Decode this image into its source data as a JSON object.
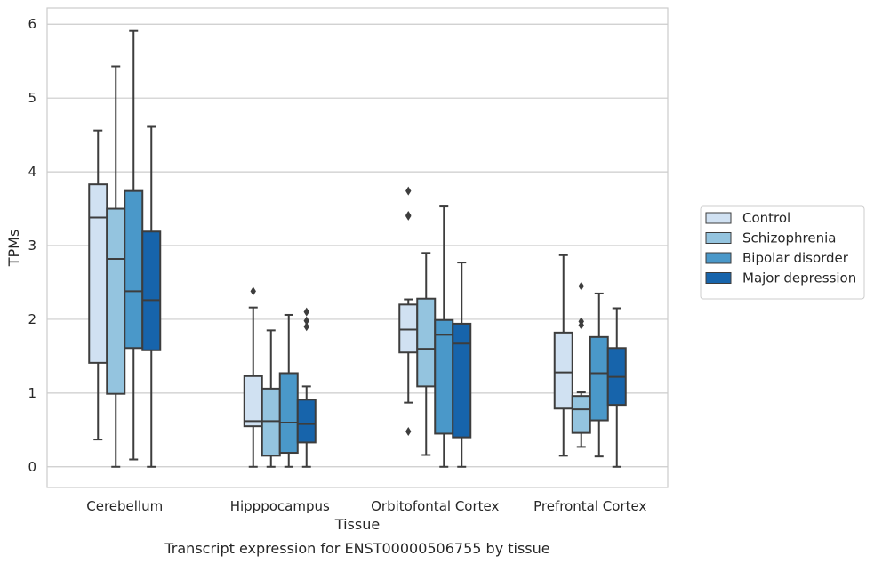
{
  "chart_data": {
    "type": "box",
    "caption": "Transcript expression for ENST00000506755 by tissue",
    "xlabel": "Tissue",
    "ylabel": "TPMs",
    "ylim": [
      -0.28,
      6.22
    ],
    "yticks": [
      0,
      1,
      2,
      3,
      4,
      5,
      6
    ],
    "grid": true,
    "legend_position": "right",
    "categories": [
      "Cerebellum",
      "Hipppocampus",
      "Orbitofontal Cortex",
      "Prefrontal Cortex"
    ],
    "series": [
      {
        "name": "Control",
        "color": "#d0e1f2",
        "boxes": [
          {
            "whislo": 0.37,
            "q1": 1.41,
            "med": 3.38,
            "q3": 3.83,
            "whishi": 4.56,
            "fliers": []
          },
          {
            "whislo": 0.0,
            "q1": 0.55,
            "med": 0.62,
            "q3": 1.23,
            "whishi": 2.16,
            "fliers": [
              2.38
            ]
          },
          {
            "whislo": 0.87,
            "q1": 1.55,
            "med": 1.86,
            "q3": 2.2,
            "whishi": 2.27,
            "fliers": [
              3.74,
              3.41,
              3.4,
              0.48
            ]
          },
          {
            "whislo": 0.15,
            "q1": 0.79,
            "med": 1.28,
            "q3": 1.82,
            "whishi": 2.87,
            "fliers": []
          }
        ]
      },
      {
        "name": "Schizophrenia",
        "color": "#94c4df",
        "boxes": [
          {
            "whislo": 0.0,
            "q1": 0.99,
            "med": 2.82,
            "q3": 3.5,
            "whishi": 5.43,
            "fliers": []
          },
          {
            "whislo": 0.0,
            "q1": 0.15,
            "med": 0.62,
            "q3": 1.06,
            "whishi": 1.85,
            "fliers": []
          },
          {
            "whislo": 0.16,
            "q1": 1.09,
            "med": 1.6,
            "q3": 2.28,
            "whishi": 2.9,
            "fliers": []
          },
          {
            "whislo": 0.27,
            "q1": 0.46,
            "med": 0.78,
            "q3": 0.96,
            "whishi": 1.01,
            "fliers": [
              2.45,
              1.97,
              1.92
            ]
          }
        ]
      },
      {
        "name": "Bipolar disorder",
        "color": "#4a98c9",
        "boxes": [
          {
            "whislo": 0.1,
            "q1": 1.61,
            "med": 2.38,
            "q3": 3.74,
            "whishi": 5.91,
            "fliers": []
          },
          {
            "whislo": 0.0,
            "q1": 0.19,
            "med": 0.6,
            "q3": 1.27,
            "whishi": 2.06,
            "fliers": []
          },
          {
            "whislo": 0.0,
            "q1": 0.45,
            "med": 1.79,
            "q3": 1.99,
            "whishi": 3.53,
            "fliers": []
          },
          {
            "whislo": 0.14,
            "q1": 0.63,
            "med": 1.27,
            "q3": 1.76,
            "whishi": 2.35,
            "fliers": []
          }
        ]
      },
      {
        "name": "Major depression",
        "color": "#1764ab",
        "boxes": [
          {
            "whislo": 0.0,
            "q1": 1.58,
            "med": 2.26,
            "q3": 3.19,
            "whishi": 4.61,
            "fliers": []
          },
          {
            "whislo": 0.0,
            "q1": 0.33,
            "med": 0.58,
            "q3": 0.91,
            "whishi": 1.09,
            "fliers": [
              2.1,
              1.98,
              1.9
            ]
          },
          {
            "whislo": 0.0,
            "q1": 0.4,
            "med": 1.67,
            "q3": 1.94,
            "whishi": 2.77,
            "fliers": []
          },
          {
            "whislo": 0.0,
            "q1": 0.84,
            "med": 1.22,
            "q3": 1.61,
            "whishi": 2.15,
            "fliers": []
          }
        ]
      }
    ]
  }
}
